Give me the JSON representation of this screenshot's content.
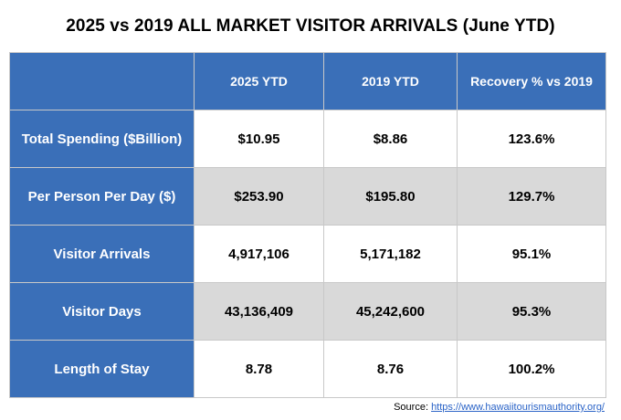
{
  "chart_data": {
    "type": "table",
    "title": "2025 vs 2019 ALL MARKET VISITOR ARRIVALS (June YTD)",
    "columns": [
      "",
      "2025 YTD",
      "2019 YTD",
      "Recovery % vs 2019"
    ],
    "rows": [
      {
        "label": "Total Spending ($Billion)",
        "cells": [
          "$10.95",
          "$8.86",
          "123.6%"
        ]
      },
      {
        "label": "Per Person Per Day ($)",
        "cells": [
          "$253.90",
          "$195.80",
          "129.7%"
        ]
      },
      {
        "label": "Visitor Arrivals",
        "cells": [
          "4,917,106",
          "5,171,182",
          "95.1%"
        ]
      },
      {
        "label": "Visitor Days",
        "cells": [
          "43,136,409",
          "45,242,600",
          "95.3%"
        ]
      },
      {
        "label": "Length of Stay",
        "cells": [
          "8.78",
          "8.76",
          "100.2%"
        ]
      }
    ]
  },
  "source": {
    "prefix": "Source: ",
    "link_text": "https://www.hawaiitourismauthority.org/"
  },
  "colors": {
    "header_blue": "#3a6fb8",
    "row_grey": "#d9d9d9",
    "link_blue": "#2a63c7"
  }
}
